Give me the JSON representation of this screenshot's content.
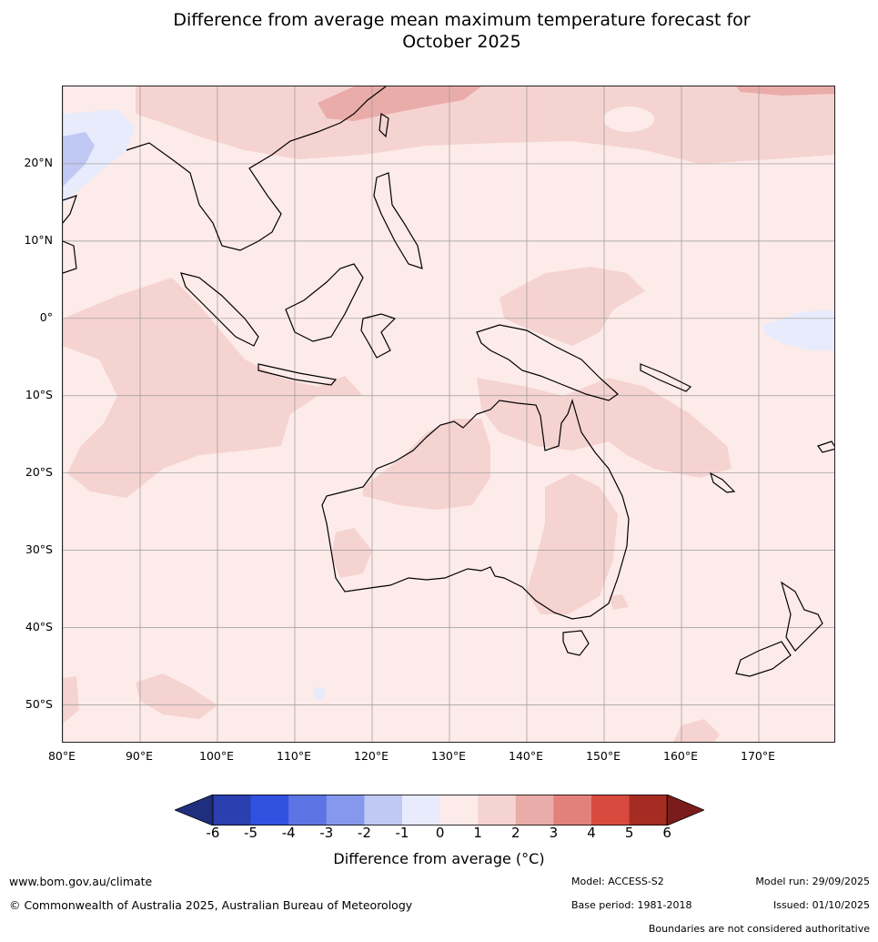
{
  "title": {
    "line1": "Difference from average mean maximum temperature forecast for",
    "line2": "October 2025"
  },
  "axes": {
    "lat_labels": [
      "20°N",
      "10°N",
      "0°",
      "10°S",
      "20°S",
      "30°S",
      "40°S",
      "50°S"
    ],
    "lat_values": [
      20,
      10,
      0,
      -10,
      -20,
      -30,
      -40,
      -50
    ],
    "lon_labels": [
      "80°E",
      "90°E",
      "100°E",
      "110°E",
      "120°E",
      "130°E",
      "140°E",
      "150°E",
      "160°E",
      "170°E"
    ],
    "lon_values": [
      80,
      90,
      100,
      110,
      120,
      130,
      140,
      150,
      160,
      170
    ],
    "lat_range": [
      -55,
      30
    ],
    "lon_range": [
      80,
      180
    ]
  },
  "colorbar": {
    "ticks": [
      "-6",
      "-5",
      "-4",
      "-3",
      "-2",
      "-1",
      "0",
      "1",
      "2",
      "3",
      "4",
      "5",
      "6"
    ],
    "colors": [
      "#1f2f7d",
      "#2a3fb0",
      "#3152e0",
      "#5c74e4",
      "#8698ec",
      "#c0c8f4",
      "#e8ebfb",
      "#fcebe9",
      "#f5d3d1",
      "#eaaca9",
      "#e2817a",
      "#d84a3e",
      "#a62b22",
      "#7a1d1a"
    ],
    "label": "Difference from average ($^\\circ$C)",
    "label_display": "Difference from average (°C)"
  },
  "footer": {
    "website": "www.bom.gov.au/climate",
    "copyright": "© Commonwealth of Australia 2025, Australian Bureau of Meteorology",
    "model": "Model: ACCESS-S2",
    "base_period": "Base period: 1981-2018",
    "model_run": "Model run: 29/09/2025",
    "issued": "Issued: 01/10/2025",
    "disclaimer": "Boundaries are not considered authoritative"
  }
}
